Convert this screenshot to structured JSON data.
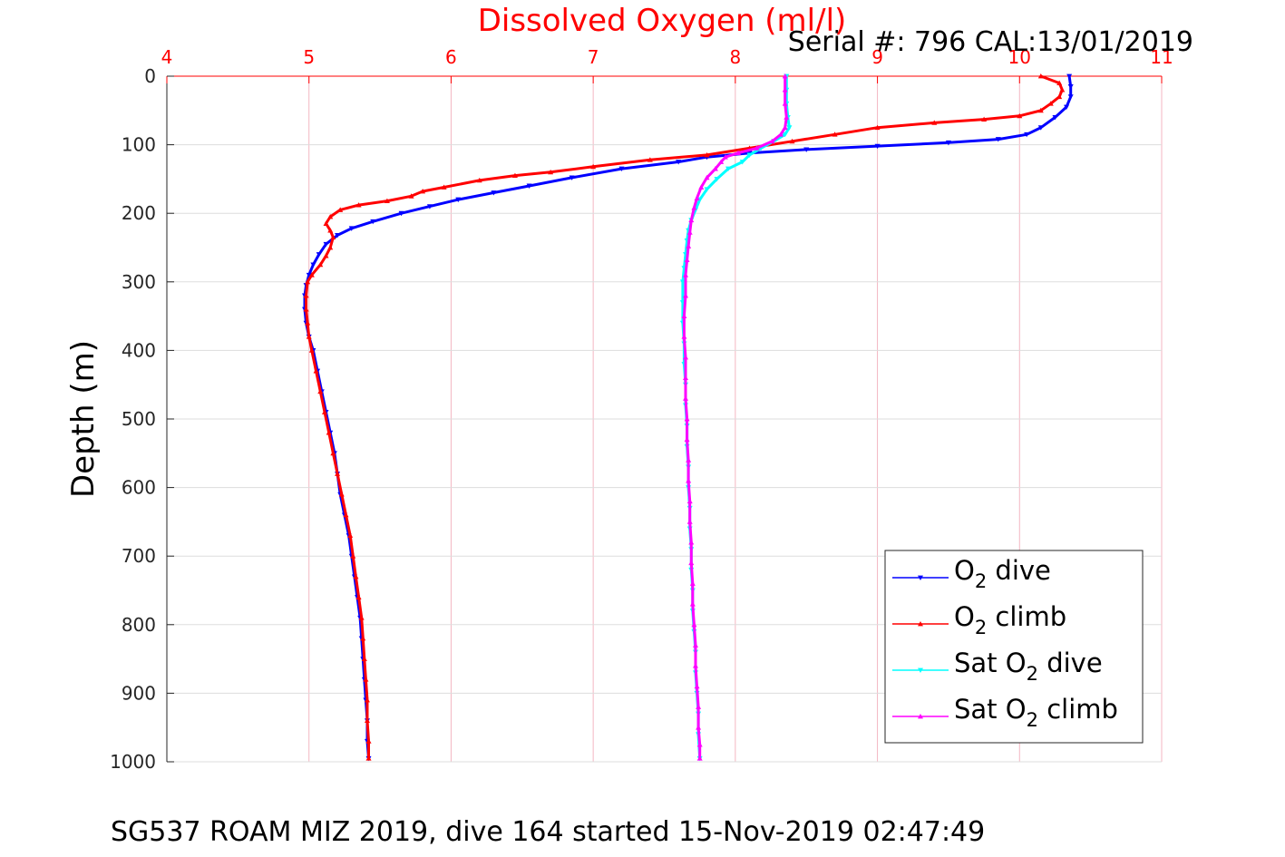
{
  "chart_data": {
    "type": "line",
    "title": "Dissolved Oxygen (ml/l)",
    "annotation": "Serial #: 796  CAL:13/01/2019",
    "ylabel": "Depth (m)",
    "caption": "SG537 ROAM MIZ 2019, dive 164 started 15-Nov-2019 02:47:49",
    "xlim": [
      4,
      11
    ],
    "ylim": [
      0,
      1000
    ],
    "y_reversed": true,
    "x_axis_position": "top",
    "x_ticks": [
      "4",
      "5",
      "6",
      "7",
      "8",
      "9",
      "10",
      "11"
    ],
    "y_ticks": [
      "0",
      "100",
      "200",
      "300",
      "400",
      "500",
      "600",
      "700",
      "800",
      "900",
      "1000"
    ],
    "grid": true,
    "grid_color": "#f4b6c2",
    "legend_position": "bottom-right",
    "legend": [
      {
        "pre": "O",
        "sub": "2",
        "post": " dive",
        "color": "#0000ff",
        "marker": "triangle-down"
      },
      {
        "pre": "O",
        "sub": "2",
        "post": " climb",
        "color": "#ff0000",
        "marker": "triangle-up"
      },
      {
        "pre": "Sat O",
        "sub": "2",
        "post": " dive",
        "color": "#00ffff",
        "marker": "triangle-down"
      },
      {
        "pre": "Sat O",
        "sub": "2",
        "post": " climb",
        "color": "#ff00ff",
        "marker": "triangle-up"
      }
    ],
    "series": [
      {
        "key": "o2_dive",
        "color": "#0000ff",
        "marker": "triangle-down",
        "points": [
          [
            10.35,
            0
          ],
          [
            10.36,
            15
          ],
          [
            10.36,
            30
          ],
          [
            10.33,
            45
          ],
          [
            10.25,
            60
          ],
          [
            10.15,
            75
          ],
          [
            10.05,
            85
          ],
          [
            9.85,
            92
          ],
          [
            9.5,
            97
          ],
          [
            9.0,
            102
          ],
          [
            8.5,
            107
          ],
          [
            8.1,
            112
          ],
          [
            7.8,
            118
          ],
          [
            7.6,
            125
          ],
          [
            7.2,
            135
          ],
          [
            6.85,
            148
          ],
          [
            6.55,
            160
          ],
          [
            6.3,
            170
          ],
          [
            6.05,
            180
          ],
          [
            5.85,
            190
          ],
          [
            5.65,
            200
          ],
          [
            5.45,
            212
          ],
          [
            5.3,
            222
          ],
          [
            5.2,
            232
          ],
          [
            5.12,
            245
          ],
          [
            5.07,
            260
          ],
          [
            5.03,
            275
          ],
          [
            5.0,
            290
          ],
          [
            4.98,
            305
          ],
          [
            4.97,
            320
          ],
          [
            4.97,
            340
          ],
          [
            4.98,
            360
          ],
          [
            5.0,
            380
          ],
          [
            5.03,
            400
          ],
          [
            5.06,
            430
          ],
          [
            5.09,
            460
          ],
          [
            5.12,
            490
          ],
          [
            5.15,
            520
          ],
          [
            5.18,
            550
          ],
          [
            5.2,
            580
          ],
          [
            5.22,
            610
          ],
          [
            5.25,
            640
          ],
          [
            5.28,
            670
          ],
          [
            5.3,
            700
          ],
          [
            5.32,
            730
          ],
          [
            5.34,
            760
          ],
          [
            5.36,
            790
          ],
          [
            5.37,
            820
          ],
          [
            5.38,
            850
          ],
          [
            5.39,
            880
          ],
          [
            5.4,
            910
          ],
          [
            5.41,
            940
          ],
          [
            5.41,
            970
          ],
          [
            5.42,
            995
          ]
        ]
      },
      {
        "key": "o2_climb",
        "color": "#ff0000",
        "marker": "triangle-up",
        "points": [
          [
            10.15,
            0
          ],
          [
            10.28,
            10
          ],
          [
            10.3,
            20
          ],
          [
            10.28,
            30
          ],
          [
            10.22,
            40
          ],
          [
            10.15,
            50
          ],
          [
            10.0,
            58
          ],
          [
            9.75,
            63
          ],
          [
            9.4,
            68
          ],
          [
            9.0,
            75
          ],
          [
            8.7,
            85
          ],
          [
            8.4,
            95
          ],
          [
            8.1,
            105
          ],
          [
            7.8,
            115
          ],
          [
            7.4,
            122
          ],
          [
            7.0,
            132
          ],
          [
            6.7,
            140
          ],
          [
            6.45,
            145
          ],
          [
            6.2,
            152
          ],
          [
            5.95,
            162
          ],
          [
            5.8,
            168
          ],
          [
            5.72,
            175
          ],
          [
            5.55,
            182
          ],
          [
            5.35,
            188
          ],
          [
            5.22,
            195
          ],
          [
            5.15,
            205
          ],
          [
            5.12,
            215
          ],
          [
            5.15,
            225
          ],
          [
            5.17,
            235
          ],
          [
            5.15,
            250
          ],
          [
            5.12,
            262
          ],
          [
            5.08,
            275
          ],
          [
            5.02,
            290
          ],
          [
            4.99,
            300
          ],
          [
            4.98,
            320
          ],
          [
            4.98,
            340
          ],
          [
            4.99,
            360
          ],
          [
            5.0,
            380
          ],
          [
            5.02,
            400
          ],
          [
            5.05,
            430
          ],
          [
            5.08,
            460
          ],
          [
            5.11,
            490
          ],
          [
            5.14,
            520
          ],
          [
            5.17,
            550
          ],
          [
            5.2,
            580
          ],
          [
            5.23,
            610
          ],
          [
            5.26,
            640
          ],
          [
            5.29,
            670
          ],
          [
            5.31,
            700
          ],
          [
            5.33,
            730
          ],
          [
            5.35,
            760
          ],
          [
            5.37,
            790
          ],
          [
            5.38,
            820
          ],
          [
            5.39,
            850
          ],
          [
            5.4,
            880
          ],
          [
            5.41,
            910
          ],
          [
            5.41,
            940
          ],
          [
            5.42,
            970
          ],
          [
            5.42,
            995
          ]
        ]
      },
      {
        "key": "sat_dive",
        "color": "#00ffff",
        "marker": "triangle-down",
        "points": [
          [
            8.36,
            0
          ],
          [
            8.36,
            20
          ],
          [
            8.36,
            40
          ],
          [
            8.37,
            60
          ],
          [
            8.38,
            75
          ],
          [
            8.35,
            85
          ],
          [
            8.27,
            95
          ],
          [
            8.18,
            105
          ],
          [
            8.1,
            115
          ],
          [
            8.05,
            125
          ],
          [
            7.95,
            135
          ],
          [
            7.87,
            150
          ],
          [
            7.8,
            165
          ],
          [
            7.75,
            180
          ],
          [
            7.72,
            195
          ],
          [
            7.69,
            210
          ],
          [
            7.67,
            225
          ],
          [
            7.66,
            240
          ],
          [
            7.65,
            260
          ],
          [
            7.64,
            280
          ],
          [
            7.63,
            300
          ],
          [
            7.63,
            330
          ],
          [
            7.63,
            360
          ],
          [
            7.64,
            390
          ],
          [
            7.64,
            420
          ],
          [
            7.65,
            450
          ],
          [
            7.65,
            480
          ],
          [
            7.66,
            510
          ],
          [
            7.66,
            540
          ],
          [
            7.67,
            570
          ],
          [
            7.67,
            600
          ],
          [
            7.68,
            630
          ],
          [
            7.68,
            660
          ],
          [
            7.69,
            690
          ],
          [
            7.69,
            720
          ],
          [
            7.7,
            750
          ],
          [
            7.7,
            780
          ],
          [
            7.71,
            810
          ],
          [
            7.72,
            840
          ],
          [
            7.72,
            870
          ],
          [
            7.73,
            900
          ],
          [
            7.74,
            930
          ],
          [
            7.74,
            960
          ],
          [
            7.75,
            995
          ]
        ]
      },
      {
        "key": "sat_climb",
        "color": "#ff00ff",
        "marker": "triangle-up",
        "points": [
          [
            8.35,
            0
          ],
          [
            8.35,
            20
          ],
          [
            8.35,
            40
          ],
          [
            8.36,
            60
          ],
          [
            8.35,
            75
          ],
          [
            8.32,
            85
          ],
          [
            8.26,
            95
          ],
          [
            8.15,
            105
          ],
          [
            8.02,
            112
          ],
          [
            7.93,
            118
          ],
          [
            7.9,
            125
          ],
          [
            7.86,
            135
          ],
          [
            7.8,
            148
          ],
          [
            7.76,
            162
          ],
          [
            7.73,
            178
          ],
          [
            7.71,
            192
          ],
          [
            7.69,
            210
          ],
          [
            7.68,
            228
          ],
          [
            7.67,
            248
          ],
          [
            7.66,
            268
          ],
          [
            7.65,
            290
          ],
          [
            7.65,
            320
          ],
          [
            7.64,
            350
          ],
          [
            7.64,
            380
          ],
          [
            7.65,
            410
          ],
          [
            7.65,
            440
          ],
          [
            7.65,
            470
          ],
          [
            7.66,
            500
          ],
          [
            7.66,
            530
          ],
          [
            7.67,
            560
          ],
          [
            7.67,
            590
          ],
          [
            7.68,
            620
          ],
          [
            7.68,
            650
          ],
          [
            7.69,
            680
          ],
          [
            7.69,
            710
          ],
          [
            7.7,
            740
          ],
          [
            7.7,
            770
          ],
          [
            7.71,
            800
          ],
          [
            7.72,
            830
          ],
          [
            7.72,
            860
          ],
          [
            7.73,
            890
          ],
          [
            7.74,
            920
          ],
          [
            7.74,
            950
          ],
          [
            7.75,
            975
          ],
          [
            7.75,
            995
          ]
        ]
      }
    ]
  }
}
